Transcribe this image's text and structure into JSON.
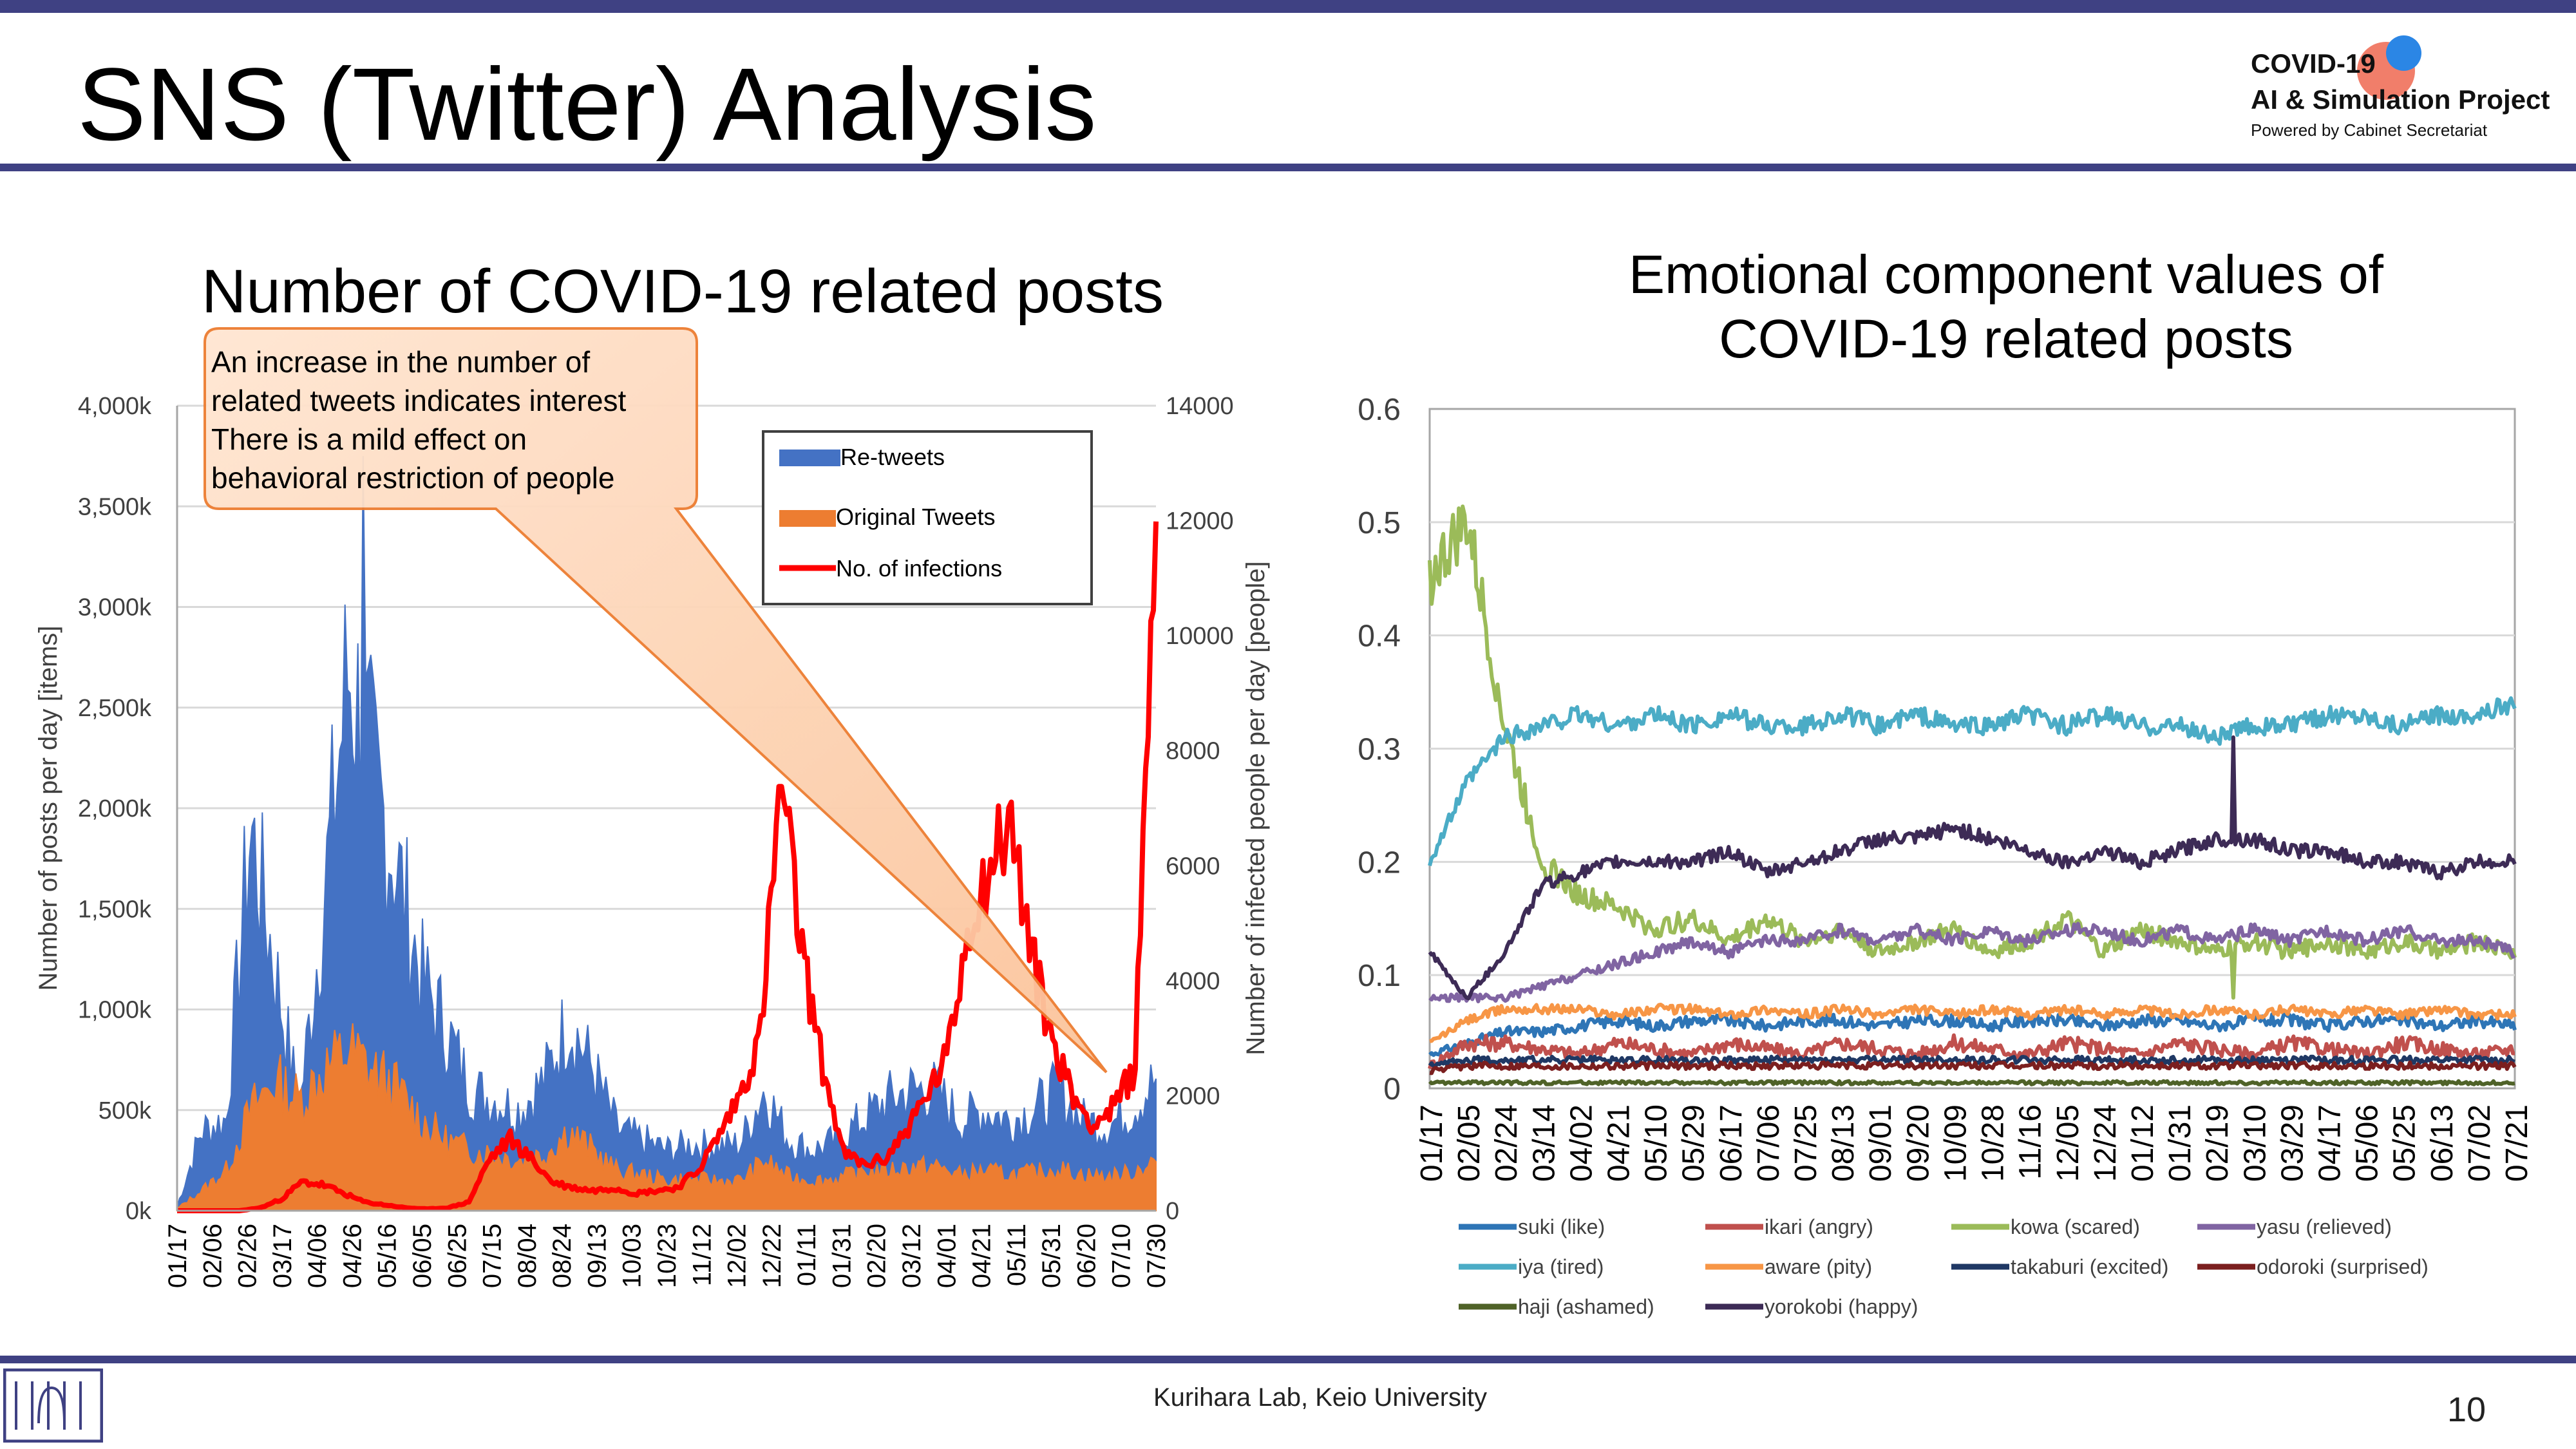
{
  "slide": {
    "title": "SNS (Twitter) Analysis",
    "logo": {
      "line1": "COVID-19",
      "line2": "AI & Simulation Project",
      "line3": "Powered by Cabinet Secretariat"
    },
    "footer": "Kurihara Lab, Keio University",
    "page_number": "10"
  },
  "colors": {
    "accent": "#3f4183",
    "retweets": "#4472c4",
    "original": "#ed7d31",
    "infections": "#ff0000"
  },
  "chart_data": [
    {
      "type": "area",
      "title": "Number of COVID-19 related posts",
      "ylabel": "Number of posts per day [items]",
      "y2label": "Number of infected people per day [people]",
      "y_ticks": [
        "4,000k",
        "3,500k",
        "3,000k",
        "2,500k",
        "2,000k",
        "1,500k",
        "1,000k",
        "500k",
        "0k"
      ],
      "y2_ticks": [
        "14000",
        "12000",
        "10000",
        "8000",
        "6000",
        "4000",
        "2000",
        "0"
      ],
      "ylim": [
        0,
        4000
      ],
      "y2lim": [
        0,
        14000
      ],
      "x_ticks": [
        "01/17",
        "02/06",
        "02/26",
        "03/17",
        "04/06",
        "04/26",
        "05/16",
        "06/05",
        "06/25",
        "07/15",
        "08/04",
        "08/24",
        "09/13",
        "10/03",
        "10/23",
        "11/12",
        "12/02",
        "12/22",
        "01/11",
        "01/31",
        "02/20",
        "03/12",
        "04/01",
        "04/21",
        "05/11",
        "05/31",
        "06/20",
        "07/10",
        "07/30"
      ],
      "legend": [
        "Re-tweets",
        "Original Tweets",
        "No. of infections"
      ],
      "legend_position": "top-right",
      "callout": {
        "lines": [
          "An increase in the number of",
          "related tweets indicates interest",
          "There is a mild effect on",
          "behavioral restriction of people"
        ]
      },
      "series": [
        {
          "name": "Re-tweets",
          "axis": "left",
          "unit": "k",
          "values": [
            20,
            400,
            450,
            1900,
            1200,
            500,
            1550,
            2700,
            2150,
            1700,
            1150,
            900,
            600,
            550,
            500,
            650,
            950,
            700,
            400,
            350,
            300,
            330,
            320,
            330,
            600,
            350,
            300,
            350,
            450,
            550,
            600,
            600,
            450,
            500,
            450,
            500,
            600,
            450,
            420,
            500,
            650
          ]
        },
        {
          "name": "Original Tweets",
          "axis": "left",
          "unit": "k",
          "values": [
            10,
            100,
            200,
            500,
            650,
            550,
            700,
            800,
            700,
            600,
            450,
            350,
            300,
            280,
            250,
            280,
            400,
            300,
            200,
            180,
            150,
            160,
            150,
            150,
            250,
            170,
            150,
            160,
            200,
            200,
            220,
            220,
            180,
            200,
            180,
            190,
            210,
            180,
            170,
            190,
            250
          ]
        },
        {
          "name": "No. of infections",
          "axis": "right",
          "values": [
            0,
            0,
            0,
            0,
            50,
            200,
            500,
            450,
            300,
            150,
            100,
            50,
            30,
            50,
            150,
            900,
            1250,
            900,
            500,
            400,
            350,
            400,
            300,
            350,
            400,
            700,
            1300,
            2000,
            3000,
            7500,
            4500,
            2500,
            1000,
            800,
            900,
            1400,
            2000,
            2700,
            5000,
            6000,
            6800,
            4500,
            3000,
            2000,
            1500,
            1800,
            2500,
            12500
          ]
        }
      ]
    },
    {
      "type": "line",
      "title": [
        "Emotional component values of",
        "COVID-19 related posts"
      ],
      "y_ticks": [
        "0.6",
        "0.5",
        "0.4",
        "0.3",
        "0.2",
        "0.1",
        "0"
      ],
      "ylim": [
        0,
        0.6
      ],
      "x_ticks": [
        "01/17",
        "02/05",
        "02/24",
        "03/14",
        "04/02",
        "04/21",
        "05/10",
        "05/29",
        "06/17",
        "07/06",
        "07/25",
        "08/13",
        "09/01",
        "09/20",
        "10/09",
        "10/28",
        "11/16",
        "12/05",
        "12/24",
        "01/12",
        "01/31",
        "02/19",
        "03/10",
        "03/29",
        "04/17",
        "05/06",
        "05/25",
        "06/13",
        "07/02",
        "07/21"
      ],
      "legend_position": "bottom",
      "series": [
        {
          "name": "suki (like)",
          "color": "#2e75b6",
          "values": [
            0.03,
            0.04,
            0.05,
            0.05,
            0.055,
            0.06,
            0.055,
            0.06,
            0.06,
            0.055,
            0.06,
            0.06,
            0.055,
            0.06,
            0.06,
            0.055,
            0.06,
            0.06,
            0.055,
            0.06,
            0.06,
            0.055,
            0.06,
            0.06,
            0.055,
            0.06,
            0.06,
            0.055,
            0.06,
            0.055
          ]
        },
        {
          "name": "ikari (angry)",
          "color": "#c0504d",
          "values": [
            0.02,
            0.04,
            0.04,
            0.035,
            0.03,
            0.04,
            0.035,
            0.03,
            0.04,
            0.035,
            0.03,
            0.04,
            0.035,
            0.03,
            0.04,
            0.035,
            0.03,
            0.04,
            0.035,
            0.03,
            0.04,
            0.035,
            0.03,
            0.04,
            0.035,
            0.03,
            0.04,
            0.035,
            0.03,
            0.035
          ]
        },
        {
          "name": "kowa (scared)",
          "color": "#9bbb59",
          "values": [
            0.45,
            0.5,
            0.32,
            0.2,
            0.17,
            0.16,
            0.14,
            0.15,
            0.13,
            0.15,
            0.13,
            0.14,
            0.12,
            0.13,
            0.14,
            0.12,
            0.13,
            0.15,
            0.12,
            0.14,
            0.13,
            0.12,
            0.13,
            0.12,
            0.13,
            0.12,
            0.13,
            0.12,
            0.13,
            0.12
          ]
        },
        {
          "name": "yasu (relieved)",
          "color": "#8064a2",
          "values": [
            0.08,
            0.08,
            0.08,
            0.09,
            0.1,
            0.11,
            0.12,
            0.13,
            0.12,
            0.13,
            0.13,
            0.14,
            0.13,
            0.14,
            0.13,
            0.14,
            0.13,
            0.14,
            0.14,
            0.13,
            0.14,
            0.13,
            0.14,
            0.13,
            0.14,
            0.13,
            0.14,
            0.13,
            0.13,
            0.12
          ]
        },
        {
          "name": "iya (tired)",
          "color": "#4bacc6",
          "values": [
            0.2,
            0.27,
            0.31,
            0.32,
            0.33,
            0.32,
            0.33,
            0.32,
            0.33,
            0.32,
            0.32,
            0.33,
            0.32,
            0.33,
            0.32,
            0.32,
            0.33,
            0.32,
            0.33,
            0.32,
            0.32,
            0.31,
            0.32,
            0.32,
            0.33,
            0.33,
            0.32,
            0.33,
            0.33,
            0.34
          ]
        },
        {
          "name": "aware (pity)",
          "color": "#f79646",
          "values": [
            0.04,
            0.06,
            0.07,
            0.07,
            0.07,
            0.065,
            0.07,
            0.07,
            0.065,
            0.07,
            0.065,
            0.07,
            0.065,
            0.07,
            0.065,
            0.07,
            0.065,
            0.07,
            0.065,
            0.07,
            0.065,
            0.07,
            0.065,
            0.07,
            0.065,
            0.07,
            0.065,
            0.07,
            0.065,
            0.065
          ]
        },
        {
          "name": "takaburi (excited)",
          "color": "#1f3864",
          "values": [
            0.02,
            0.025,
            0.025,
            0.025,
            0.025,
            0.025,
            0.025,
            0.025,
            0.025,
            0.025,
            0.025,
            0.025,
            0.025,
            0.025,
            0.025,
            0.025,
            0.025,
            0.025,
            0.025,
            0.025,
            0.025,
            0.025,
            0.025,
            0.025,
            0.025,
            0.025,
            0.025,
            0.025,
            0.025,
            0.025
          ]
        },
        {
          "name": "odoroki (surprised)",
          "color": "#7b1f1f",
          "values": [
            0.015,
            0.02,
            0.02,
            0.02,
            0.02,
            0.02,
            0.02,
            0.02,
            0.02,
            0.02,
            0.02,
            0.02,
            0.02,
            0.02,
            0.02,
            0.02,
            0.02,
            0.02,
            0.02,
            0.02,
            0.02,
            0.02,
            0.02,
            0.02,
            0.02,
            0.02,
            0.02,
            0.02,
            0.02,
            0.02
          ]
        },
        {
          "name": "haji (ashamed)",
          "color": "#4f6228",
          "values": [
            0.005,
            0.005,
            0.005,
            0.005,
            0.005,
            0.005,
            0.005,
            0.005,
            0.005,
            0.005,
            0.005,
            0.005,
            0.005,
            0.005,
            0.005,
            0.005,
            0.005,
            0.005,
            0.005,
            0.005,
            0.005,
            0.005,
            0.005,
            0.005,
            0.005,
            0.005,
            0.005,
            0.005,
            0.005,
            0.005
          ]
        },
        {
          "name": "yorokobi (happy)",
          "color": "#3d2b56",
          "values": [
            0.12,
            0.08,
            0.12,
            0.18,
            0.19,
            0.2,
            0.2,
            0.2,
            0.21,
            0.19,
            0.2,
            0.21,
            0.22,
            0.22,
            0.23,
            0.22,
            0.21,
            0.2,
            0.21,
            0.2,
            0.21,
            0.22,
            0.22,
            0.21,
            0.21,
            0.2,
            0.2,
            0.19,
            0.2,
            0.2
          ]
        }
      ]
    }
  ]
}
